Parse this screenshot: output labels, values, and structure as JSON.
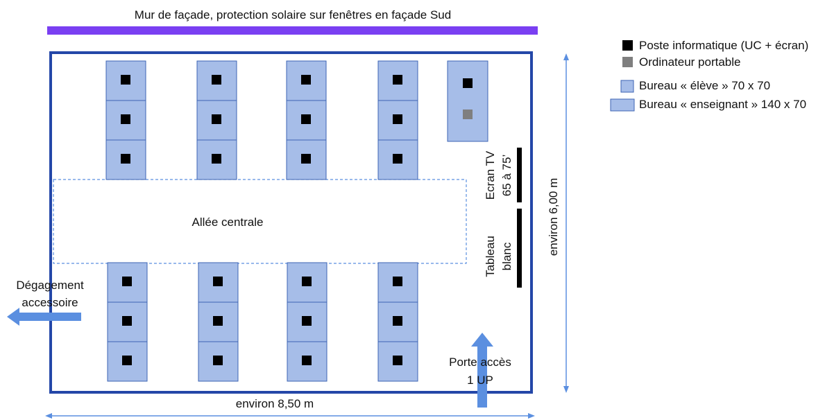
{
  "title": "Mur de façade, protection solaire sur fenêtres en façade Sud",
  "colors": {
    "wall": "#7a3ff2",
    "room_border": "#2447a8",
    "desk_fill": "#a6bde8",
    "desk_border": "#3d64b3",
    "pc": "#000000",
    "laptop": "#7f7f7f",
    "arrow": "#5b8fe0",
    "dim_line": "#5b8fe0",
    "board": "#000000",
    "aisle_border": "#5b8fe0"
  },
  "legend": {
    "items": [
      {
        "label": "Poste informatique (UC + écran)",
        "icon": "black-square-icon"
      },
      {
        "label": "Ordinateur portable",
        "icon": "gray-square-icon"
      },
      {
        "label": "Bureau « élève » 70 x 70",
        "icon": "small-desk-icon"
      },
      {
        "label": "Bureau « enseignant » 140 x 70",
        "icon": "wide-desk-icon"
      }
    ]
  },
  "labels": {
    "aisle": "Allée centrale",
    "tv_line1": "Ecran TV",
    "tv_line2": "65 à 75’",
    "board_line1": "Tableau",
    "board_line2": "blanc",
    "exit_line1": "Dégagement",
    "exit_line2": "accessoire",
    "door_line1": "Porte accès",
    "door_line2": "1 UP",
    "width": "environ 8,50 m",
    "height": "environ 6,00 m"
  }
}
